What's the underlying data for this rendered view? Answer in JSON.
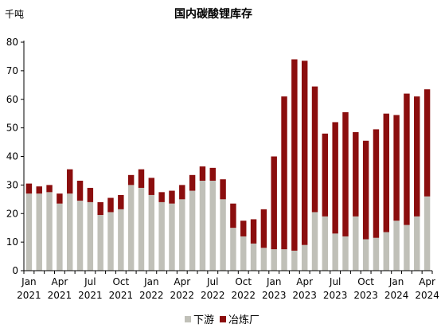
{
  "chart_data": {
    "type": "bar",
    "stacked": true,
    "title": "国内碳酸锂库存",
    "unit_label": "千吨",
    "ylim": [
      0,
      80
    ],
    "yticks": [
      0,
      10,
      20,
      30,
      40,
      50,
      60,
      70,
      80
    ],
    "grid": false,
    "legend_position": "bottom",
    "x_tick_labels": [
      {
        "month": "Jan",
        "year": "2021",
        "index": 0
      },
      {
        "month": "Apr",
        "year": "2021",
        "index": 3
      },
      {
        "month": "Jul",
        "year": "2021",
        "index": 6
      },
      {
        "month": "Oct",
        "year": "2021",
        "index": 9
      },
      {
        "month": "Jan",
        "year": "2022",
        "index": 12
      },
      {
        "month": "Apr",
        "year": "2022",
        "index": 15
      },
      {
        "month": "Jul",
        "year": "2022",
        "index": 18
      },
      {
        "month": "Oct",
        "year": "2022",
        "index": 21
      },
      {
        "month": "Jan",
        "year": "2023",
        "index": 24
      },
      {
        "month": "Apr",
        "year": "2023",
        "index": 27
      },
      {
        "month": "Jul",
        "year": "2023",
        "index": 30
      },
      {
        "month": "Oct",
        "year": "2023",
        "index": 33
      },
      {
        "month": "Jan",
        "year": "2024",
        "index": 36
      },
      {
        "month": "Apr",
        "year": "2024",
        "index": 39
      }
    ],
    "series": [
      {
        "name": "下游",
        "color": "#c0c0b8",
        "values": [
          27,
          27,
          27.5,
          23.5,
          27,
          24.5,
          24,
          19.5,
          20.5,
          21.5,
          30,
          29,
          26.5,
          24,
          23.5,
          25,
          28,
          31.5,
          31.5,
          25,
          15,
          12,
          9.5,
          8,
          7.5,
          7.5,
          7,
          9,
          20.5,
          19,
          13,
          12,
          19,
          11,
          11.5,
          13.5,
          17.5,
          16,
          19,
          26
        ]
      },
      {
        "name": "冶炼厂",
        "color": "#8b0e0e",
        "values": [
          3.5,
          2.5,
          2.5,
          3.5,
          8.5,
          7,
          5,
          4.5,
          5,
          5,
          3.5,
          6.5,
          6,
          3.5,
          4.5,
          5,
          5.5,
          5,
          4.5,
          7,
          8.5,
          5.5,
          8.5,
          13.5,
          32.5,
          53.5,
          67,
          64.5,
          44,
          29,
          39,
          43.5,
          29.5,
          34.5,
          38,
          41.5,
          37,
          46,
          42,
          37.5
        ]
      }
    ]
  }
}
